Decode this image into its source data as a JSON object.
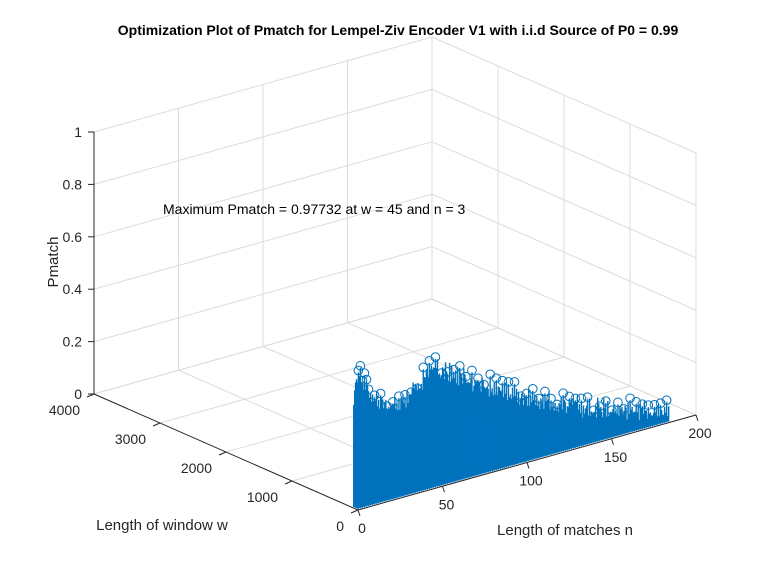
{
  "chart_data": {
    "type": "stem3",
    "title": "Optimization Plot of Pmatch for Lempel-Ziv Encoder V1 with i.i.d Source of P0 = 0.99",
    "xlabel": "Length of matches n",
    "ylabel": "Length of window w",
    "zlabel": "Pmatch",
    "xlim": [
      0,
      200
    ],
    "ylim": [
      0,
      4000
    ],
    "zlim": [
      0,
      1
    ],
    "xticks": [
      "0",
      "50",
      "100",
      "150",
      "200"
    ],
    "yticks": [
      "0",
      "1000",
      "2000",
      "3000",
      "4000"
    ],
    "zticks": [
      "0",
      "0.2",
      "0.4",
      "0.6",
      "0.8",
      "1"
    ],
    "grid": true,
    "marker": "circle",
    "color": "#0072BD",
    "annotation": "Maximum Pmatch = 0.97732 at w = 45 and n = 3",
    "max_point": {
      "n": 3,
      "w": 45,
      "pmatch": 0.97732
    },
    "envelope": [
      {
        "n": 1,
        "pmatch": 0.56
      },
      {
        "n": 3,
        "pmatch": 0.54
      },
      {
        "n": 10,
        "pmatch": 0.45
      },
      {
        "n": 25,
        "pmatch": 0.38
      },
      {
        "n": 45,
        "pmatch": 0.5
      },
      {
        "n": 70,
        "pmatch": 0.4
      },
      {
        "n": 100,
        "pmatch": 0.29
      },
      {
        "n": 130,
        "pmatch": 0.2
      },
      {
        "n": 160,
        "pmatch": 0.13
      },
      {
        "n": 185,
        "pmatch": 0.08
      }
    ]
  }
}
